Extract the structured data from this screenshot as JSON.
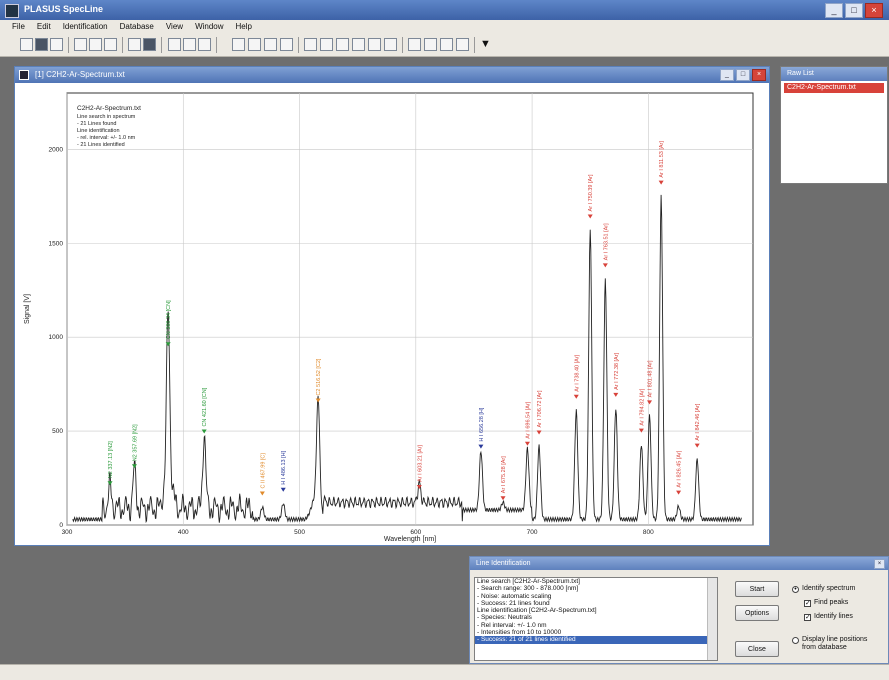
{
  "app": {
    "title": "PLASUS SpecLine"
  },
  "menu": [
    "File",
    "Edit",
    "Identification",
    "Database",
    "View",
    "Window",
    "Help"
  ],
  "child_window": {
    "title": "[1] C2H2-Ar-Spectrum.txt"
  },
  "chart_info": [
    "C2H2-Ar-Spectrum.txt",
    "Line search in spectrum",
    "- 21 Lines found",
    "Line identification",
    "- rel. interval: +/- 1.0 nm",
    "- 21 Lines identified"
  ],
  "chart_data": {
    "type": "line",
    "xlabel": "Wavelength [nm]",
    "ylabel": "Signal [V]",
    "xlim": [
      300,
      890
    ],
    "ylim": [
      0,
      2300
    ],
    "xticks": [
      300,
      400,
      500,
      600,
      700,
      800
    ],
    "yticks": [
      0,
      500,
      1000,
      1500,
      2000
    ],
    "grid": true,
    "series_color": "#222222",
    "peaks": [
      {
        "x": 337,
        "y": 180,
        "label": "N2 337.13 [N2]",
        "color": "#2a9a3a"
      },
      {
        "x": 358,
        "y": 270,
        "label": "N2 357.69 [N2]",
        "color": "#2a9a3a"
      },
      {
        "x": 387,
        "y": 920,
        "label": "CN 388.34 [CN]",
        "color": "#2a9a3a"
      },
      {
        "x": 418,
        "y": 455,
        "label": "CN 421.60 [CN]",
        "color": "#2a9a3a"
      },
      {
        "x": 468,
        "y": 125,
        "label": "C II 467.99 [C]",
        "color": "#e08a2a"
      },
      {
        "x": 486,
        "y": 145,
        "label": "H I 486.13 [H]",
        "color": "#2a3a9a"
      },
      {
        "x": 516,
        "y": 620,
        "label": "C2 516.52 [C2]",
        "color": "#e08a2a"
      },
      {
        "x": 603,
        "y": 160,
        "label": "Ar I 603.21 [Ar]",
        "color": "#d8423a"
      },
      {
        "x": 656,
        "y": 375,
        "label": "H I 656.28 [H]",
        "color": "#2a3a9a"
      },
      {
        "x": 675,
        "y": 100,
        "label": "Ar I 675.28 [Ar]",
        "color": "#d8423a"
      },
      {
        "x": 696,
        "y": 390,
        "label": "Ar I 696.54 [Ar]",
        "color": "#d8423a"
      },
      {
        "x": 706,
        "y": 450,
        "label": "Ar I 706.72 [Ar]",
        "color": "#d8423a"
      },
      {
        "x": 738,
        "y": 640,
        "label": "Ar I 738.40 [Ar]",
        "color": "#d8423a"
      },
      {
        "x": 750,
        "y": 1600,
        "label": "Ar I 750.39 [Ar]",
        "color": "#d8423a"
      },
      {
        "x": 763,
        "y": 1340,
        "label": "Ar I 763.51 [Ar]",
        "color": "#d8423a"
      },
      {
        "x": 772,
        "y": 650,
        "label": "Ar I 772.38 [Ar]",
        "color": "#d8423a"
      },
      {
        "x": 794,
        "y": 460,
        "label": "Ar I 794.82 [Ar]",
        "color": "#d8423a"
      },
      {
        "x": 801,
        "y": 610,
        "label": "Ar I 801.48 [Ar]",
        "color": "#d8423a"
      },
      {
        "x": 811,
        "y": 1780,
        "label": "Ar I 811.53 [Ar]",
        "color": "#d8423a"
      },
      {
        "x": 826,
        "y": 130,
        "label": "Ar I 826.45 [Ar]",
        "color": "#d8423a"
      },
      {
        "x": 842,
        "y": 380,
        "label": "Ar I 842.46 [Ar]",
        "color": "#d8423a"
      }
    ]
  },
  "raw_list": {
    "title": "Raw List",
    "items": [
      "C2H2-Ar-Spectrum.txt"
    ]
  },
  "dialog": {
    "title": "Line Identification",
    "log": [
      "Line search [C2H2-Ar-Spectrum.txt]",
      "- Search range: 300 - 878.000 [nm]",
      "- Noise: automatic scaling",
      "- Success: 21 lines found",
      "Line identification [C2H2-Ar-Spectrum.txt]",
      "- Species: Neutrals",
      "- Rel interval: +/- 1.0 nm",
      "- Intensities from 10 to 10000",
      "- Success: 21 of 21 lines identified"
    ],
    "start": "Start",
    "options": "Options",
    "close": "Close",
    "opt_identify_spectrum": "Identify spectrum",
    "opt_find_peaks": "Find peaks",
    "opt_identify_lines": "Identify lines",
    "opt_display_db": "Display line positions from database"
  }
}
